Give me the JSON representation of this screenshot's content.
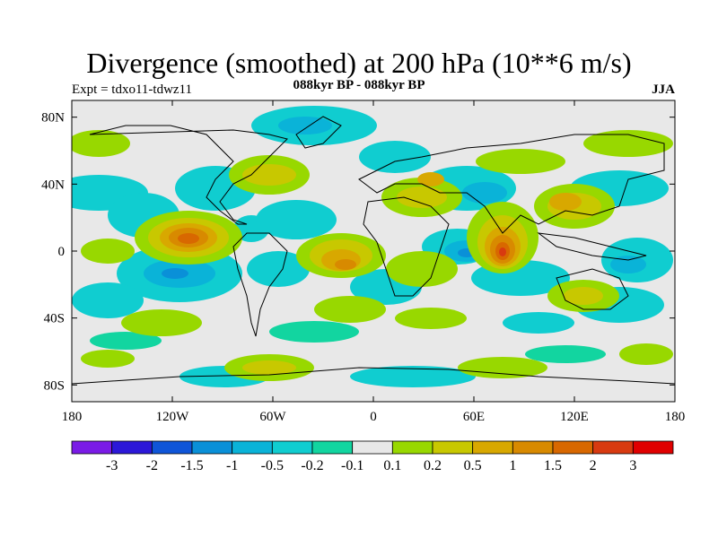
{
  "title": "Divergence (smoothed) at 200 hPa (10**6 m/s)",
  "experiment": "Expt = tdxo11-tdwz11",
  "period": "088kyr BP - 088kyr BP",
  "season": "JJA",
  "axes": {
    "lat_ticks": [
      "80N",
      "40N",
      "0",
      "40S",
      "80S"
    ],
    "lon_ticks": [
      "180",
      "120W",
      "60W",
      "0",
      "60E",
      "120E",
      "180"
    ]
  },
  "colorbar": {
    "colors": [
      "#7a1be6",
      "#2c18d8",
      "#0f55d8",
      "#0a90d8",
      "#0ab3d8",
      "#10cdd0",
      "#12d5a0",
      "#e8e8e8",
      "#98d800",
      "#c8c800",
      "#d8a800",
      "#d88a00",
      "#d86800",
      "#d83a10",
      "#e00000"
    ],
    "labels": [
      "-3",
      "-2",
      "-1.5",
      "-1",
      "-0.5",
      "-0.2",
      "-0.1",
      "0.1",
      "0.2",
      "0.5",
      "1",
      "1.5",
      "2",
      "3"
    ]
  }
}
